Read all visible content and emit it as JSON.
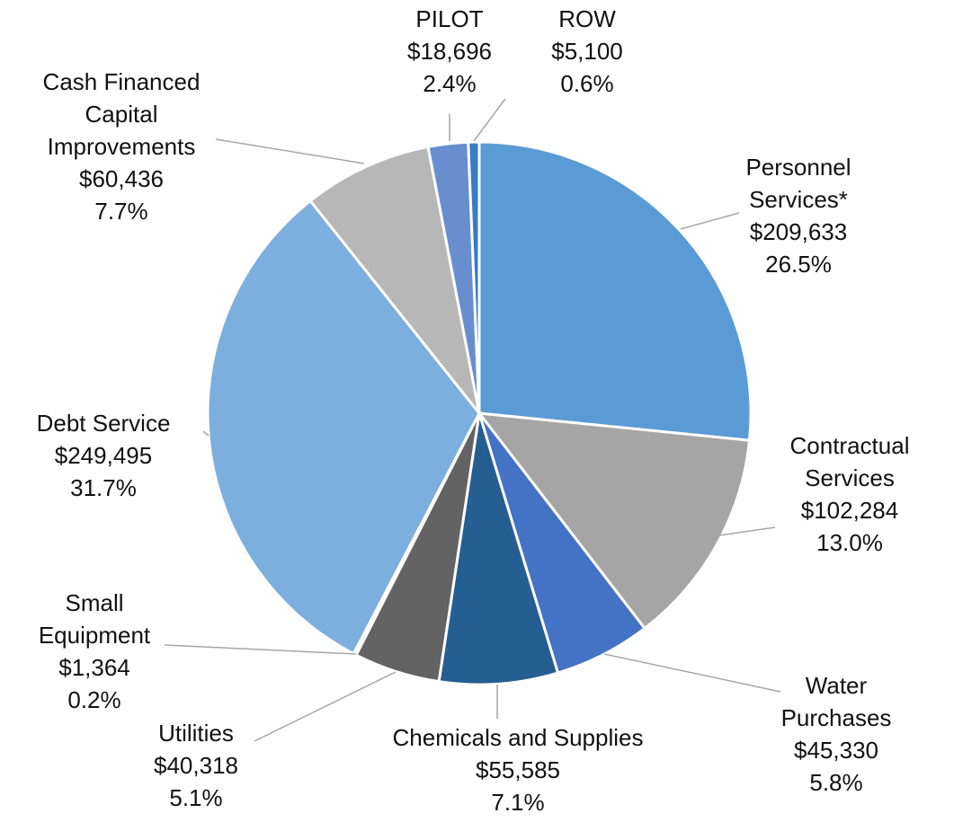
{
  "chart_data": {
    "type": "pie",
    "categories": [
      "Personnel Services*",
      "Contractual Services",
      "Water Purchases",
      "Chemicals and Supplies",
      "Utilities",
      "Small Equipment",
      "Debt Service",
      "Cash Financed Capital Improvements",
      "PILOT",
      "ROW"
    ],
    "values": [
      209633,
      102284,
      45330,
      55585,
      40318,
      1364,
      249495,
      60436,
      18696,
      5100
    ],
    "value_labels": [
      "$209,633",
      "$102,284",
      "$45,330",
      "$55,585",
      "$40,318",
      "$1,364",
      "$249,495",
      "$60,436",
      "$18,696",
      "$5,100"
    ],
    "percent_labels": [
      "26.5%",
      "13.0%",
      "5.8%",
      "7.1%",
      "5.1%",
      "0.2%",
      "31.7%",
      "7.7%",
      "2.4%",
      "0.6%"
    ],
    "colors": [
      "#5b9bd5",
      "#a5a5a5",
      "#4472c4",
      "#255e91",
      "#636363",
      "#f2f2f2",
      "#7cafdd",
      "#b7b7b7",
      "#698ed0",
      "#3a7cc4"
    ]
  }
}
